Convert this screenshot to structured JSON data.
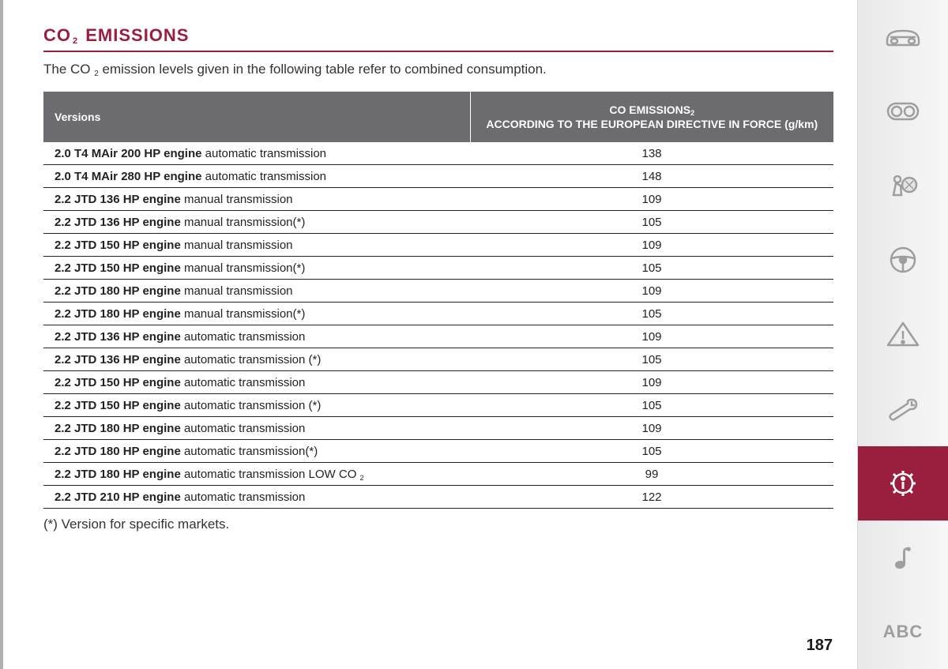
{
  "heading": {
    "prefix": "CO",
    "sub": "2",
    "suffix": " EMISSIONS"
  },
  "intro": {
    "prefix": "The CO ",
    "sub": "2",
    "suffix": " emission levels given in the following table refer to combined consumption."
  },
  "table": {
    "header_versions": "Versions",
    "header_emissions_line1_pre": "CO EMISSIONS",
    "header_emissions_line1_sub": "2",
    "header_emissions_line2": "ACCORDING TO THE EUROPEAN DIRECTIVE IN FORCE (g/km)",
    "rows": [
      {
        "engine": "2.0 T4 MAir 200 HP engine",
        "trans": " automatic transmission",
        "value": "138"
      },
      {
        "engine": "2.0 T4 MAir 280 HP engine",
        "trans": " automatic transmission",
        "value": "148"
      },
      {
        "engine": "2.2 JTD 136 HP engine",
        "trans": " manual transmission",
        "value": "109"
      },
      {
        "engine": "2.2 JTD 136 HP engine",
        "trans": " manual transmission(*)",
        "value": "105"
      },
      {
        "engine": "2.2 JTD 150 HP engine",
        "trans": " manual transmission",
        "value": "109"
      },
      {
        "engine": "2.2 JTD 150 HP engine",
        "trans": " manual transmission(*)",
        "value": "105"
      },
      {
        "engine": "2.2 JTD 180 HP engine",
        "trans": " manual transmission",
        "value": "109"
      },
      {
        "engine": "2.2 JTD 180 HP engine",
        "trans": " manual transmission(*)",
        "value": "105"
      },
      {
        "engine": "2.2 JTD 136 HP engine",
        "trans": " automatic transmission",
        "value": "109"
      },
      {
        "engine": "2.2 JTD 136 HP engine",
        "trans": " automatic transmission (*)",
        "value": "105"
      },
      {
        "engine": "2.2 JTD 150 HP engine",
        "trans": " automatic transmission",
        "value": "109"
      },
      {
        "engine": "2.2 JTD 150 HP engine",
        "trans": " automatic transmission (*)",
        "value": "105"
      },
      {
        "engine": "2.2 JTD 180 HP engine",
        "trans": " automatic transmission",
        "value": "109"
      },
      {
        "engine": "2.2 JTD 180 HP engine",
        "trans": " automatic transmission(*)",
        "value": "105"
      },
      {
        "engine": "2.2 JTD 180 HP engine",
        "trans": " automatic transmission LOW CO ",
        "trans_sub": "2",
        "value": "99"
      },
      {
        "engine": "2.2 JTD 210 HP engine",
        "trans": " automatic transmission",
        "value": "122"
      }
    ]
  },
  "footnote": "(*) Version for specific markets.",
  "page_number": "187",
  "sidebar": {
    "abc_label": "ABC",
    "icons": [
      {
        "name": "car-icon",
        "active": false
      },
      {
        "name": "dashboard-icon",
        "active": false
      },
      {
        "name": "airbag-icon",
        "active": false
      },
      {
        "name": "steering-wheel-icon",
        "active": false
      },
      {
        "name": "warning-triangle-icon",
        "active": false
      },
      {
        "name": "wrench-icon",
        "active": false
      },
      {
        "name": "info-gear-icon",
        "active": true
      },
      {
        "name": "music-note-icon",
        "active": false
      },
      {
        "name": "abc-icon",
        "active": false
      }
    ]
  },
  "colors": {
    "accent": "#9a1f3f",
    "header_bg": "#6b6b70",
    "text": "#222222",
    "sidebar_icon": "#9e9e9e"
  }
}
